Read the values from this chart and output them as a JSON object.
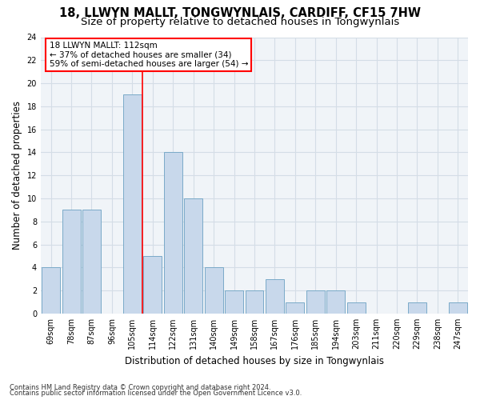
{
  "title_line1": "18, LLWYN MALLT, TONGWYNLAIS, CARDIFF, CF15 7HW",
  "title_line2": "Size of property relative to detached houses in Tongwynlais",
  "xlabel": "Distribution of detached houses by size in Tongwynlais",
  "ylabel": "Number of detached properties",
  "categories": [
    "69sqm",
    "78sqm",
    "87sqm",
    "96sqm",
    "105sqm",
    "114sqm",
    "122sqm",
    "131sqm",
    "140sqm",
    "149sqm",
    "158sqm",
    "167sqm",
    "176sqm",
    "185sqm",
    "194sqm",
    "203sqm",
    "211sqm",
    "220sqm",
    "229sqm",
    "238sqm",
    "247sqm"
  ],
  "values": [
    4,
    9,
    9,
    0,
    19,
    5,
    14,
    10,
    4,
    2,
    2,
    3,
    1,
    2,
    2,
    1,
    0,
    0,
    1,
    0,
    1
  ],
  "bar_color": "#c8d8eb",
  "bar_edge_color": "#7aaac8",
  "red_line_x": 4.5,
  "annotation_title": "18 LLWYN MALLT: 112sqm",
  "annotation_line1": "← 37% of detached houses are smaller (34)",
  "annotation_line2": "59% of semi-detached houses are larger (54) →",
  "annotation_box_color": "white",
  "annotation_box_edge": "red",
  "ylim": [
    0,
    24
  ],
  "yticks": [
    0,
    2,
    4,
    6,
    8,
    10,
    12,
    14,
    16,
    18,
    20,
    22,
    24
  ],
  "footer_line1": "Contains HM Land Registry data © Crown copyright and database right 2024.",
  "footer_line2": "Contains public sector information licensed under the Open Government Licence v3.0.",
  "plot_bg_color": "#f0f4f8",
  "grid_color": "#d4dde6",
  "title_fontsize": 10.5,
  "subtitle_fontsize": 9.5,
  "tick_fontsize": 7,
  "ylabel_fontsize": 8.5,
  "xlabel_fontsize": 8.5,
  "annotation_fontsize": 7.5,
  "footer_fontsize": 6
}
